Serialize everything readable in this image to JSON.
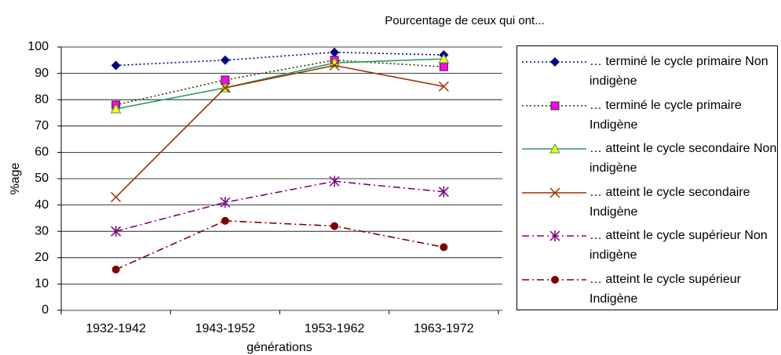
{
  "chart_data": {
    "type": "line",
    "title": "Pourcentage de ceux qui ont...",
    "ylabel": "%age",
    "xlabel": "générations",
    "categories": [
      "1932-1942",
      "1943-1952",
      "1953-1962",
      "1963-1972"
    ],
    "ylim": [
      0,
      100
    ],
    "yticks": [
      0,
      10,
      20,
      30,
      40,
      50,
      60,
      70,
      80,
      90,
      100
    ],
    "grid": true,
    "legend": "right",
    "series": [
      {
        "name": "… terminé le cycle primaire Non indigène",
        "color": "#000080",
        "marker_color": "#000080",
        "marker": "diamond",
        "style": "dotted",
        "values": [
          93,
          95,
          98,
          97
        ]
      },
      {
        "name": "… terminé le cycle primaire Indigène",
        "color": "#333300",
        "marker_color": "#ff00ff",
        "marker": "square",
        "style": "dotted",
        "values": [
          78,
          87.5,
          95,
          92.5
        ]
      },
      {
        "name": "… atteint le cycle secondaire Non indigène",
        "color": "#339966",
        "marker_color": "#ffff00",
        "marker": "triangle",
        "style": "solid",
        "values": [
          76.5,
          84.5,
          94,
          95.5
        ]
      },
      {
        "name": "… atteint le cycle secondaire Indigène",
        "color": "#993300",
        "marker_color": "#993300",
        "marker": "x",
        "style": "solid",
        "values": [
          43,
          84.5,
          93,
          85
        ]
      },
      {
        "name": "… atteint le cycle supérieur Non indigène",
        "color": "#800080",
        "marker_color": "#800080",
        "marker": "asterisk",
        "style": "dash-dot",
        "values": [
          30,
          41,
          49,
          45
        ]
      },
      {
        "name": "… atteint le cycle supérieur Indigène",
        "color": "#800000",
        "marker_color": "#800000",
        "marker": "circle",
        "style": "dash-dot",
        "values": [
          15.5,
          34,
          32,
          24
        ]
      }
    ]
  }
}
